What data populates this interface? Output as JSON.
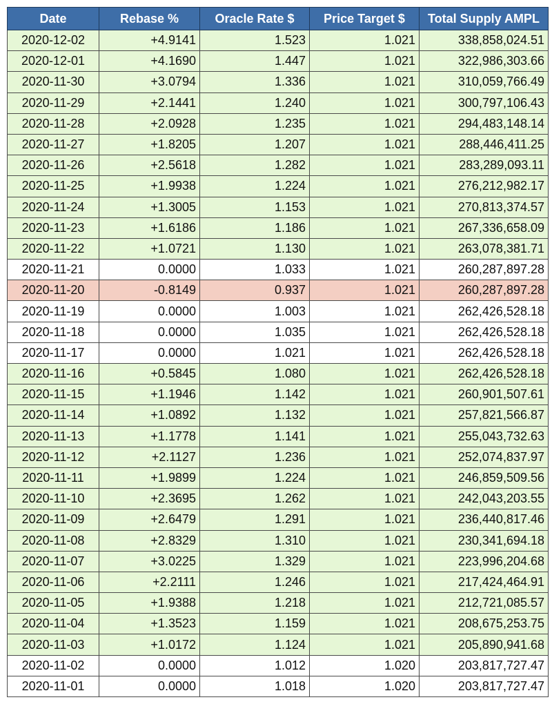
{
  "headers": [
    "Date",
    "Rebase %",
    "Oracle Rate $",
    "Price Target $",
    "Total Supply AMPL"
  ],
  "colors": {
    "header": "#3e6ea8",
    "positive_row": "#e6f7d6",
    "negative_row": "#f4cfc3",
    "neutral_row": "#ffffff"
  },
  "rows": [
    {
      "status": "pos",
      "cells": [
        "2020-12-02",
        "+4.9141",
        "1.523",
        "1.021",
        "338,858,024.51"
      ]
    },
    {
      "status": "pos",
      "cells": [
        "2020-12-01",
        "+4.1690",
        "1.447",
        "1.021",
        "322,986,303.66"
      ]
    },
    {
      "status": "pos",
      "cells": [
        "2020-11-30",
        "+3.0794",
        "1.336",
        "1.021",
        "310,059,766.49"
      ]
    },
    {
      "status": "pos",
      "cells": [
        "2020-11-29",
        "+2.1441",
        "1.240",
        "1.021",
        "300,797,106.43"
      ]
    },
    {
      "status": "pos",
      "cells": [
        "2020-11-28",
        "+2.0928",
        "1.235",
        "1.021",
        "294,483,148.14"
      ]
    },
    {
      "status": "pos",
      "cells": [
        "2020-11-27",
        "+1.8205",
        "1.207",
        "1.021",
        "288,446,411.25"
      ]
    },
    {
      "status": "pos",
      "cells": [
        "2020-11-26",
        "+2.5618",
        "1.282",
        "1.021",
        "283,289,093.11"
      ]
    },
    {
      "status": "pos",
      "cells": [
        "2020-11-25",
        "+1.9938",
        "1.224",
        "1.021",
        "276,212,982.17"
      ]
    },
    {
      "status": "pos",
      "cells": [
        "2020-11-24",
        "+1.3005",
        "1.153",
        "1.021",
        "270,813,374.57"
      ]
    },
    {
      "status": "pos",
      "cells": [
        "2020-11-23",
        "+1.6186",
        "1.186",
        "1.021",
        "267,336,658.09"
      ]
    },
    {
      "status": "pos",
      "cells": [
        "2020-11-22",
        "+1.0721",
        "1.130",
        "1.021",
        "263,078,381.71"
      ]
    },
    {
      "status": "zero",
      "cells": [
        "2020-11-21",
        "0.0000",
        "1.033",
        "1.021",
        "260,287,897.28"
      ]
    },
    {
      "status": "neg",
      "cells": [
        "2020-11-20",
        "-0.8149",
        "0.937",
        "1.021",
        "260,287,897.28"
      ]
    },
    {
      "status": "zero",
      "cells": [
        "2020-11-19",
        "0.0000",
        "1.003",
        "1.021",
        "262,426,528.18"
      ]
    },
    {
      "status": "zero",
      "cells": [
        "2020-11-18",
        "0.0000",
        "1.035",
        "1.021",
        "262,426,528.18"
      ]
    },
    {
      "status": "zero",
      "cells": [
        "2020-11-17",
        "0.0000",
        "1.021",
        "1.021",
        "262,426,528.18"
      ]
    },
    {
      "status": "pos",
      "cells": [
        "2020-11-16",
        "+0.5845",
        "1.080",
        "1.021",
        "262,426,528.18"
      ]
    },
    {
      "status": "pos",
      "cells": [
        "2020-11-15",
        "+1.1946",
        "1.142",
        "1.021",
        "260,901,507.61"
      ]
    },
    {
      "status": "pos",
      "cells": [
        "2020-11-14",
        "+1.0892",
        "1.132",
        "1.021",
        "257,821,566.87"
      ]
    },
    {
      "status": "pos",
      "cells": [
        "2020-11-13",
        "+1.1778",
        "1.141",
        "1.021",
        "255,043,732.63"
      ]
    },
    {
      "status": "pos",
      "cells": [
        "2020-11-12",
        "+2.1127",
        "1.236",
        "1.021",
        "252,074,837.97"
      ]
    },
    {
      "status": "pos",
      "cells": [
        "2020-11-11",
        "+1.9899",
        "1.224",
        "1.021",
        "246,859,509.56"
      ]
    },
    {
      "status": "pos",
      "cells": [
        "2020-11-10",
        "+2.3695",
        "1.262",
        "1.021",
        "242,043,203.55"
      ]
    },
    {
      "status": "pos",
      "cells": [
        "2020-11-09",
        "+2.6479",
        "1.291",
        "1.021",
        "236,440,817.46"
      ]
    },
    {
      "status": "pos",
      "cells": [
        "2020-11-08",
        "+2.8329",
        "1.310",
        "1.021",
        "230,341,694.18"
      ]
    },
    {
      "status": "pos",
      "cells": [
        "2020-11-07",
        "+3.0225",
        "1.329",
        "1.021",
        "223,996,204.68"
      ]
    },
    {
      "status": "pos",
      "cells": [
        "2020-11-06",
        "+2.2111",
        "1.246",
        "1.021",
        "217,424,464.91"
      ]
    },
    {
      "status": "pos",
      "cells": [
        "2020-11-05",
        "+1.9388",
        "1.218",
        "1.021",
        "212,721,085.57"
      ]
    },
    {
      "status": "pos",
      "cells": [
        "2020-11-04",
        "+1.3523",
        "1.159",
        "1.021",
        "208,675,253.75"
      ]
    },
    {
      "status": "pos",
      "cells": [
        "2020-11-03",
        "+1.0172",
        "1.124",
        "1.021",
        "205,890,941.68"
      ]
    },
    {
      "status": "zero",
      "cells": [
        "2020-11-02",
        "0.0000",
        "1.012",
        "1.020",
        "203,817,727.47"
      ]
    },
    {
      "status": "zero",
      "cells": [
        "2020-11-01",
        "0.0000",
        "1.018",
        "1.020",
        "203,817,727.47"
      ]
    }
  ]
}
